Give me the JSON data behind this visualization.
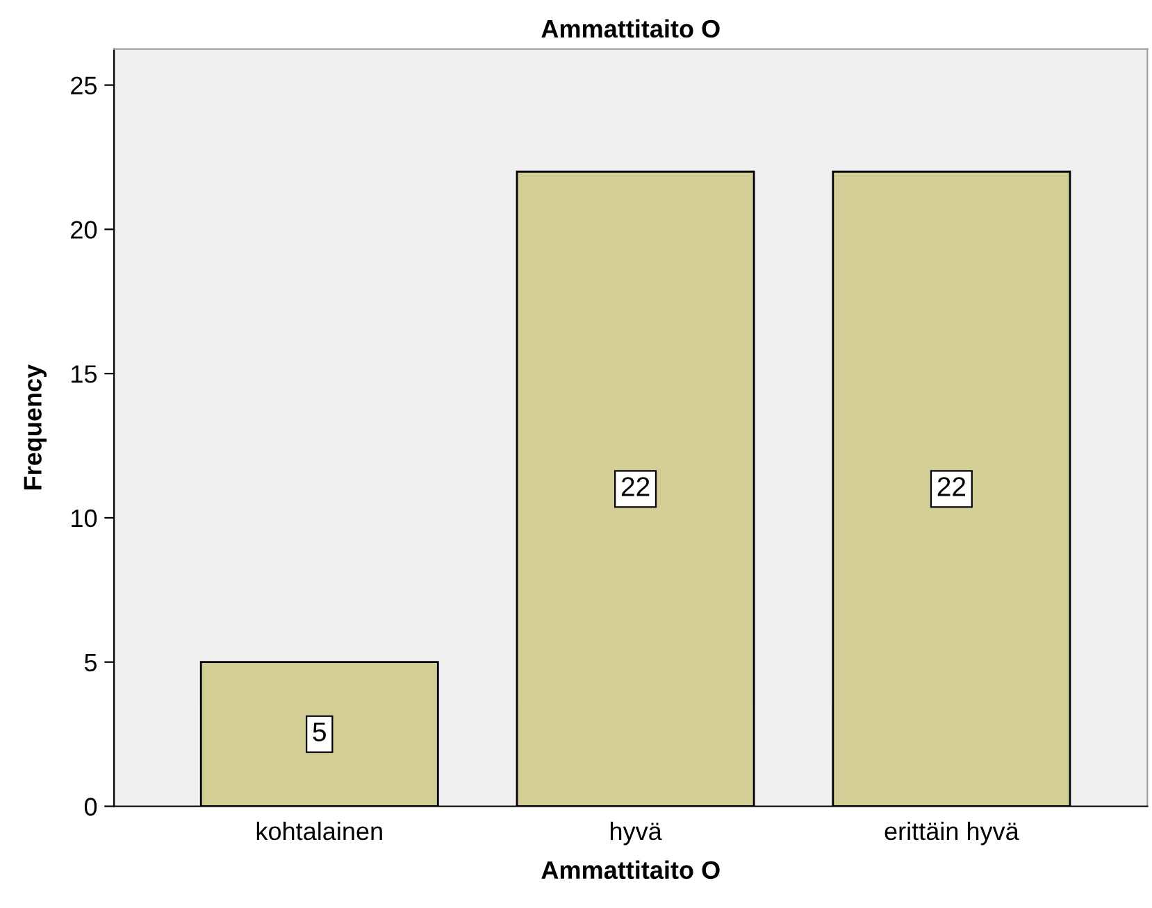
{
  "chart_data": {
    "type": "bar",
    "title": "Ammattitaito O",
    "xlabel": "Ammattitaito O",
    "ylabel": "Frequency",
    "categories": [
      "kohtalainen",
      "hyvä",
      "erittäin hyvä"
    ],
    "values": [
      5,
      22,
      22
    ],
    "color": "#d3ce96",
    "ylim": [
      0,
      26.25
    ],
    "yticks": [
      0,
      5,
      10,
      15,
      20,
      25
    ],
    "grid": false,
    "data_labels": true
  }
}
